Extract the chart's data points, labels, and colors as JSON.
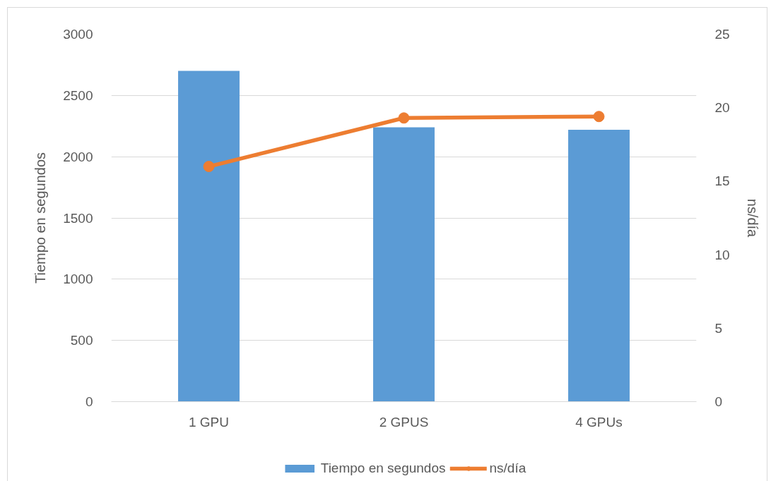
{
  "chart_data": {
    "type": "bar",
    "categories": [
      "1 GPU",
      "2 GPUS",
      "4 GPUs"
    ],
    "ylabel": "Tiempo en segundos",
    "y2label": "ns/día",
    "ylim": [
      0,
      3000
    ],
    "yticks": [
      0,
      500,
      1000,
      1500,
      2000,
      2500,
      3000
    ],
    "y2lim": [
      0,
      25
    ],
    "y2ticks": [
      0,
      5,
      10,
      15,
      20,
      25
    ],
    "grid": "y",
    "legend": "bottom",
    "series": [
      {
        "name": "Tiempo en segundos",
        "color": "#5b9bd5",
        "values": [
          2700,
          2240,
          2220
        ]
      },
      {
        "name": "ns/día",
        "type": "line",
        "axis": "y2",
        "color": "#ed7d31",
        "marker": "circle",
        "values": [
          16.0,
          19.3,
          19.4
        ]
      }
    ]
  }
}
